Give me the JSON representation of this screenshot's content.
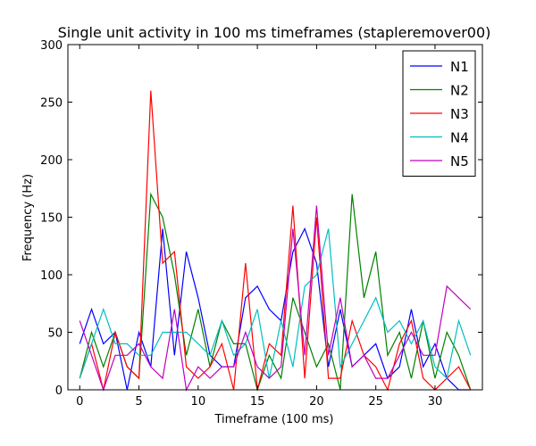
{
  "chart_data": {
    "type": "line",
    "title": "Single unit activity in 100 ms timeframes (stapleremover00)",
    "xlabel": "Timeframe (100 ms)",
    "ylabel": "Frequency (Hz)",
    "xlim": [
      -1,
      34
    ],
    "ylim": [
      0,
      300
    ],
    "xticks": [
      0,
      5,
      10,
      15,
      20,
      25,
      30
    ],
    "yticks": [
      0,
      50,
      100,
      150,
      200,
      250,
      300
    ],
    "grid": false,
    "legend_position": "top-right",
    "x": [
      0,
      1,
      2,
      3,
      4,
      5,
      6,
      7,
      8,
      9,
      10,
      11,
      12,
      13,
      14,
      15,
      16,
      17,
      18,
      19,
      20,
      21,
      22,
      23,
      24,
      25,
      26,
      27,
      28,
      29,
      30,
      31,
      32,
      33
    ],
    "series": [
      {
        "name": "N1",
        "color": "#0000ff",
        "values": [
          40,
          70,
          40,
          50,
          0,
          50,
          20,
          140,
          30,
          120,
          80,
          30,
          20,
          20,
          80,
          90,
          70,
          60,
          120,
          140,
          110,
          20,
          70,
          20,
          30,
          40,
          10,
          20,
          70,
          20,
          40,
          10,
          0,
          0
        ]
      },
      {
        "name": "N2",
        "color": "#008000",
        "values": [
          10,
          50,
          20,
          50,
          20,
          10,
          170,
          150,
          100,
          30,
          70,
          20,
          60,
          40,
          40,
          0,
          30,
          10,
          80,
          50,
          20,
          40,
          0,
          170,
          80,
          120,
          30,
          50,
          10,
          60,
          10,
          50,
          30,
          0
        ]
      },
      {
        "name": "N3",
        "color": "#ff0000",
        "values": [
          10,
          40,
          0,
          50,
          20,
          10,
          260,
          110,
          120,
          20,
          10,
          20,
          40,
          0,
          110,
          0,
          40,
          30,
          160,
          10,
          150,
          10,
          10,
          60,
          30,
          20,
          0,
          40,
          60,
          10,
          0,
          10,
          20,
          0
        ]
      },
      {
        "name": "N4",
        "color": "#00bfbf",
        "values": [
          10,
          40,
          70,
          40,
          40,
          30,
          30,
          50,
          50,
          50,
          40,
          30,
          60,
          30,
          40,
          70,
          10,
          60,
          20,
          90,
          100,
          140,
          20,
          40,
          60,
          80,
          50,
          60,
          40,
          60,
          20,
          10,
          60,
          30
        ]
      },
      {
        "name": "N5",
        "color": "#bf00bf",
        "values": [
          60,
          30,
          0,
          30,
          30,
          40,
          20,
          10,
          70,
          0,
          20,
          10,
          20,
          20,
          50,
          20,
          10,
          20,
          140,
          30,
          160,
          30,
          80,
          20,
          30,
          10,
          10,
          30,
          50,
          30,
          30,
          90,
          80,
          70
        ]
      }
    ]
  }
}
